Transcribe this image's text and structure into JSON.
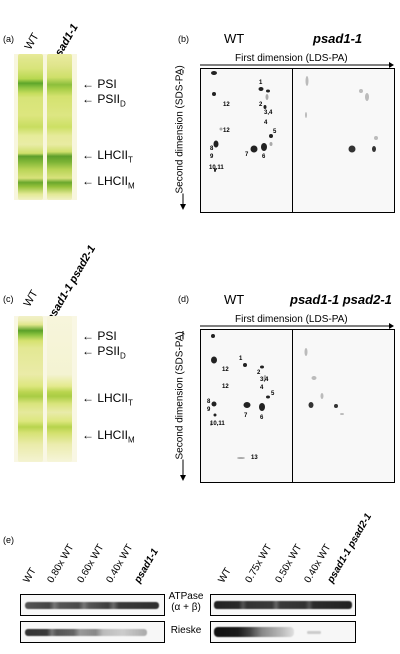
{
  "panels": {
    "a": {
      "label": "(a)",
      "lanes": [
        "WT",
        "psad1-1"
      ],
      "bands": [
        "PSI",
        "PSII",
        "LHCII",
        "LHCII"
      ],
      "band_subscripts": [
        "",
        "D",
        "T",
        "M"
      ]
    },
    "b": {
      "label": "(b)",
      "wt_label": "WT",
      "mutant_label": "psad1-1",
      "first_dimension": "First dimension (LDS-PA)",
      "second_dimension": "Second dimension (SDS-PA)",
      "spots": [
        "1",
        "2",
        "3,4",
        "4",
        "5",
        "6",
        "7",
        "8",
        "9",
        "10,11",
        "12",
        "12"
      ]
    },
    "c": {
      "label": "(c)",
      "lanes": [
        "WT",
        "psad1-1 psad2-1"
      ],
      "bands": [
        "PSI",
        "PSII",
        "LHCII",
        "LHCII"
      ],
      "band_subscripts": [
        "",
        "D",
        "T",
        "M"
      ]
    },
    "d": {
      "label": "(d)",
      "wt_label": "WT",
      "mutant_label": "psad1-1 psad2-1",
      "first_dimension": "First dimension (LDS-PA)",
      "second_dimension": "Second dimension (SDS-PA)",
      "spots": [
        "1",
        "2",
        "3,4",
        "4",
        "5",
        "6",
        "7",
        "8",
        "9",
        "10,11",
        "12",
        "12",
        "13"
      ]
    },
    "e": {
      "label": "(e)",
      "left_lanes": [
        "WT",
        "0.80x WT",
        "0.60x WT",
        "0.40x WT",
        "psad1-1"
      ],
      "right_lanes": [
        "WT",
        "0.75x WT",
        "0.50x WT",
        "0.40x WT",
        "psad1-1 psad2-1"
      ],
      "row1_label": "ATPase",
      "row1_sublabel": "(α + β)",
      "row2_label": "Rieske"
    }
  },
  "colors": {
    "gel_bg": "#f6f2c8",
    "band_green": "#5aa028",
    "band_yellow": "#d6da3a"
  }
}
